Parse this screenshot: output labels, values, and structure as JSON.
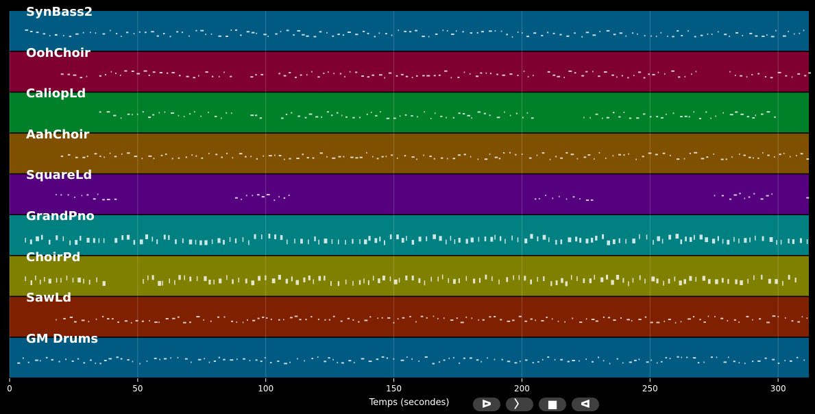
{
  "chart_data": {
    "type": "piano-roll",
    "xlabel": "Temps (secondes)",
    "xlim": [
      0,
      312
    ],
    "xticks": [
      0,
      50,
      100,
      150,
      200,
      250,
      300
    ],
    "grid": true,
    "tracks": [
      {
        "name": "SynBass2",
        "color": "#005a82",
        "active": [
          [
            6,
            18
          ],
          [
            18,
            312
          ]
        ]
      },
      {
        "name": "OohChoir",
        "color": "#7f0030",
        "active": [
          [
            20,
            30
          ],
          [
            35,
            88
          ],
          [
            94,
            100
          ],
          [
            105,
            205
          ],
          [
            210,
            230
          ],
          [
            232,
            270
          ],
          [
            281,
            312
          ]
        ]
      },
      {
        "name": "CaliopLd",
        "color": "#008028",
        "active": [
          [
            35,
            88
          ],
          [
            94,
            100
          ],
          [
            106,
            205
          ],
          [
            224,
            290
          ],
          [
            291,
            299
          ]
        ]
      },
      {
        "name": "AahChoir",
        "color": "#7f5000",
        "active": [
          [
            20,
            312
          ]
        ]
      },
      {
        "name": "SquareLd",
        "color": "#55007f",
        "active": [
          [
            18,
            41
          ],
          [
            88,
            111
          ],
          [
            205,
            228
          ],
          [
            275,
            298
          ],
          [
            311,
            312
          ]
        ]
      },
      {
        "name": "GrandPno",
        "color": "#008080",
        "active": [
          [
            6,
            39
          ],
          [
            41,
            87
          ],
          [
            88,
            312
          ]
        ]
      },
      {
        "name": "ChoirPd",
        "color": "#7f7f00",
        "active": [
          [
            6,
            39
          ],
          [
            52,
            308
          ]
        ]
      },
      {
        "name": "SawLd",
        "color": "#7f2000",
        "active": [
          [
            18,
            312
          ]
        ]
      },
      {
        "name": "GM Drums",
        "color": "#005a82",
        "active": [
          [
            3,
            312
          ]
        ]
      }
    ]
  },
  "controls": {
    "play": "ᐅ",
    "forward": "〉",
    "stop": "■",
    "back": "ᐊ"
  }
}
